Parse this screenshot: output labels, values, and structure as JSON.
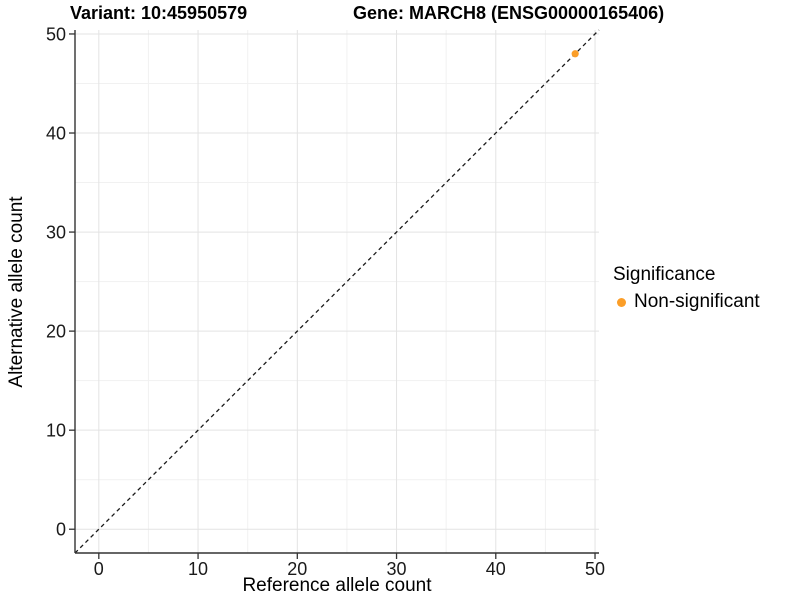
{
  "chart_data": {
    "type": "scatter",
    "title": {
      "left": "Variant: 10:45950579",
      "right": "Gene: MARCH8 (ENSG00000165406)"
    },
    "xlabel": "Reference allele count",
    "ylabel": "Alternative allele count",
    "x_ticks": [
      0,
      10,
      20,
      30,
      40,
      50
    ],
    "y_ticks": [
      0,
      10,
      20,
      30,
      40,
      50
    ],
    "x_minor_ticks": [
      5,
      15,
      25,
      35,
      45
    ],
    "y_minor_ticks": [
      5,
      15,
      25,
      35,
      45
    ],
    "xlim": [
      -2.4,
      50.4
    ],
    "ylim": [
      -2.4,
      50.4
    ],
    "grid": "on",
    "series": [
      {
        "name": "Non-significant",
        "color": "#FB9E28",
        "points": [
          {
            "x": 48,
            "y": 48
          }
        ]
      }
    ],
    "reference_line": {
      "slope": 1,
      "intercept": 0,
      "style": "dashed",
      "color": "#1A1A1A"
    },
    "legend": {
      "title": "Significance",
      "position": "right",
      "entries": [
        {
          "label": "Non-significant",
          "color": "#FB9E28",
          "marker": "circle"
        }
      ]
    },
    "style": {
      "background": "#FFFFFF",
      "grid_major_color": "#E3E3E3",
      "grid_minor_color": "#F1F1F1",
      "axis_line_color": "#333333",
      "tick_mark_color": "#333333",
      "tick_label_color": "#1A1A1A"
    }
  }
}
